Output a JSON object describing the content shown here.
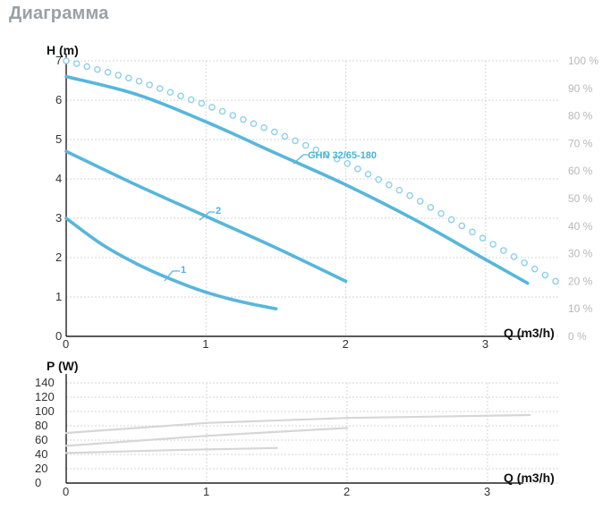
{
  "title": "Диаграмма",
  "chart_data": [
    {
      "type": "line",
      "xlabel": "Q (m3/h)",
      "ylabel": "H (m)",
      "xlim": [
        0,
        3.4
      ],
      "ylim": [
        0,
        7
      ],
      "x_ticks": [
        "0",
        "1",
        "2",
        "3"
      ],
      "y_ticks": [
        "0",
        "1",
        "2",
        "3",
        "4",
        "5",
        "6",
        "7"
      ],
      "secondary_axis": {
        "ticks": [
          "0 %",
          "10 %",
          "20 %",
          "30 %",
          "40 %",
          "50 %",
          "60 %",
          "70 %",
          "80 %",
          "90 %",
          "100 %"
        ]
      },
      "grid": true,
      "series": [
        {
          "name": "1",
          "color": "#57b6dc",
          "style": "solid",
          "x": [
            0,
            0.25,
            0.5,
            0.75,
            1.0,
            1.25,
            1.5
          ],
          "y": [
            3.0,
            2.35,
            1.85,
            1.45,
            1.12,
            0.88,
            0.7
          ]
        },
        {
          "name": "2",
          "color": "#57b6dc",
          "style": "solid",
          "x": [
            0,
            0.5,
            1.0,
            1.5,
            2.0
          ],
          "y": [
            4.7,
            3.85,
            3.05,
            2.25,
            1.4
          ]
        },
        {
          "name": "GHN 32/65-180",
          "color": "#57b6dc",
          "style": "solid",
          "x": [
            0,
            0.5,
            1.0,
            1.5,
            2.0,
            2.5,
            3.0,
            3.3
          ],
          "y": [
            6.6,
            6.15,
            5.45,
            4.65,
            3.85,
            2.95,
            1.95,
            1.35
          ]
        },
        {
          "name": "",
          "color": "#8fcfe8",
          "style": "dotted",
          "axis": "secondary",
          "x": [
            0,
            0.5,
            1.0,
            1.5,
            2.0,
            2.5,
            3.0,
            3.5
          ],
          "y": [
            100,
            93,
            84,
            74,
            63,
            50,
            35,
            20
          ]
        }
      ]
    },
    {
      "type": "line",
      "xlabel": "Q (m3/h)",
      "ylabel": "P (W)",
      "xlim": [
        0,
        3.4
      ],
      "ylim": [
        0,
        140
      ],
      "x_ticks": [
        "0",
        "1",
        "2",
        "3"
      ],
      "y_ticks": [
        "0",
        "20",
        "40",
        "60",
        "80",
        "100",
        "120",
        "140"
      ],
      "grid": true,
      "series": [
        {
          "color": "#d6d6d6",
          "x": [
            0,
            0.75,
            1.5
          ],
          "y": [
            42,
            46,
            49
          ]
        },
        {
          "color": "#d6d6d6",
          "x": [
            0,
            1.0,
            2.0
          ],
          "y": [
            52,
            66,
            77
          ]
        },
        {
          "color": "#d6d6d6",
          "x": [
            0,
            1.0,
            2.0,
            3.3
          ],
          "y": [
            70,
            84,
            91,
            95
          ]
        }
      ]
    }
  ]
}
